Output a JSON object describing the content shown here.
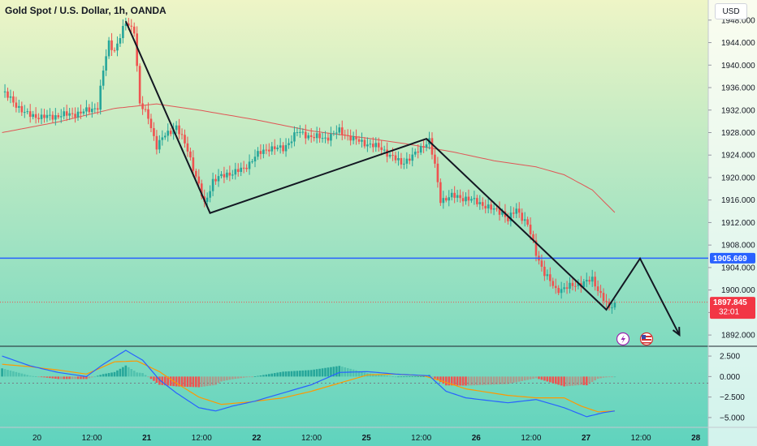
{
  "header": {
    "title": "Gold Spot / U.S. Dollar, 1h, OANDA",
    "currency_button": "USD"
  },
  "colors": {
    "bull": "#26a69a",
    "bear": "#ef5350",
    "ma_line": "#e05555",
    "hline": "#2962ff",
    "bg_top": "#eef5c6",
    "bg_bottom": "#5fd3be",
    "macd_line": "#2962ff",
    "signal_line": "#ff9800",
    "hist_pos": "#26a69a",
    "hist_neg": "#ef5350"
  },
  "chart_data": [
    {
      "type": "candlestick",
      "title": "Gold Spot / U.S. Dollar, 1h, OANDA",
      "ylim": [
        1890,
        1951
      ],
      "y_ticks": [
        1892,
        1896,
        1900,
        1904,
        1908,
        1912,
        1916,
        1920,
        1924,
        1928,
        1932,
        1936,
        1940,
        1944,
        1948
      ],
      "y_tick_labels": [
        "1892.000",
        "1896.000",
        "1900.000",
        "1904.000",
        "1908.000",
        "1912.000",
        "1916.000",
        "1920.000",
        "1924.000",
        "1928.000",
        "1932.000",
        "1936.000",
        "1940.000",
        "1944.000",
        "1948.000"
      ],
      "x_tick_labels": [
        "20",
        "12:00",
        "21",
        "12:00",
        "22",
        "12:00",
        "25",
        "12:00",
        "26",
        "12:00",
        "27",
        "12:00",
        "28"
      ],
      "horizontal_line": {
        "price": 1905.669,
        "label": "1905.669"
      },
      "last_price": {
        "price": 1897.845,
        "label": "1897.845",
        "countdown": "32:01"
      },
      "close_keypoints": [
        [
          0,
          1935.2
        ],
        [
          3,
          1934.0
        ],
        [
          8,
          1931.4
        ],
        [
          14,
          1930.7
        ],
        [
          20,
          1931.0
        ],
        [
          28,
          1931.5
        ],
        [
          34,
          1932.6
        ],
        [
          36,
          1939.0
        ],
        [
          38,
          1944.0
        ],
        [
          40,
          1942.6
        ],
        [
          44,
          1947.5
        ],
        [
          47,
          1946.3
        ],
        [
          49,
          1933.0
        ],
        [
          52,
          1930.8
        ],
        [
          55,
          1925.5
        ],
        [
          58,
          1927.6
        ],
        [
          62,
          1929.0
        ],
        [
          66,
          1925.0
        ],
        [
          70,
          1918.5
        ],
        [
          72,
          1915.2
        ],
        [
          75,
          1919.5
        ],
        [
          80,
          1920.6
        ],
        [
          86,
          1921.5
        ],
        [
          90,
          1923.8
        ],
        [
          95,
          1925.3
        ],
        [
          100,
          1925.1
        ],
        [
          105,
          1928.1
        ],
        [
          110,
          1927.3
        ],
        [
          115,
          1927.0
        ],
        [
          120,
          1928.3
        ],
        [
          125,
          1926.8
        ],
        [
          130,
          1926.0
        ],
        [
          135,
          1925.2
        ],
        [
          138,
          1923.9
        ],
        [
          142,
          1922.6
        ],
        [
          146,
          1923.7
        ],
        [
          150,
          1925.8
        ],
        [
          152,
          1926.6
        ],
        [
          154,
          1922.0
        ],
        [
          156,
          1916.0
        ],
        [
          160,
          1916.7
        ],
        [
          165,
          1916.3
        ],
        [
          170,
          1915.5
        ],
        [
          174,
          1914.4
        ],
        [
          178,
          1913.9
        ],
        [
          180,
          1912.4
        ],
        [
          183,
          1914.4
        ],
        [
          187,
          1911.6
        ],
        [
          190,
          1906.5
        ],
        [
          193,
          1903.0
        ],
        [
          197,
          1900.0
        ],
        [
          202,
          1900.6
        ],
        [
          206,
          1901.2
        ],
        [
          210,
          1901.8
        ],
        [
          214,
          1898.5
        ],
        [
          216,
          1896.5
        ],
        [
          218,
          1897.8
        ]
      ],
      "ma": {
        "points": [
          [
            0,
            1928.0
          ],
          [
            20,
            1929.9
          ],
          [
            40,
            1932.3
          ],
          [
            55,
            1933.1
          ],
          [
            70,
            1932.0
          ],
          [
            90,
            1930.3
          ],
          [
            110,
            1928.3
          ],
          [
            130,
            1927.0
          ],
          [
            145,
            1925.9
          ],
          [
            160,
            1924.6
          ],
          [
            175,
            1923.0
          ],
          [
            190,
            1921.9
          ],
          [
            200,
            1920.5
          ],
          [
            210,
            1917.8
          ],
          [
            218,
            1913.8
          ]
        ]
      },
      "drawing_path": [
        [
          44,
          1947.8
        ],
        [
          74,
          1913.7
        ],
        [
          151,
          1926.9
        ],
        [
          215,
          1896.5
        ],
        [
          227,
          1905.6
        ],
        [
          241,
          1892.0
        ]
      ]
    },
    {
      "type": "macd",
      "ylim": [
        -6,
        3.4
      ],
      "y_ticks": [
        2.5,
        0,
        -2.5,
        -5
      ],
      "y_tick_labels": [
        "2.500",
        "0.000",
        "−2.500",
        "−5.000"
      ],
      "macd": [
        [
          0,
          2.5
        ],
        [
          10,
          1.3
        ],
        [
          20,
          0.5
        ],
        [
          30,
          0.0
        ],
        [
          36,
          1.5
        ],
        [
          44,
          3.2
        ],
        [
          50,
          2.0
        ],
        [
          56,
          -0.4
        ],
        [
          62,
          -2.0
        ],
        [
          70,
          -3.8
        ],
        [
          76,
          -4.2
        ],
        [
          82,
          -3.6
        ],
        [
          90,
          -3.0
        ],
        [
          100,
          -2.0
        ],
        [
          110,
          -1.0
        ],
        [
          120,
          0.5
        ],
        [
          130,
          0.6
        ],
        [
          140,
          0.3
        ],
        [
          152,
          0.1
        ],
        [
          158,
          -1.8
        ],
        [
          165,
          -2.6
        ],
        [
          170,
          -2.8
        ],
        [
          180,
          -3.2
        ],
        [
          190,
          -2.8
        ],
        [
          200,
          -3.8
        ],
        [
          208,
          -4.9
        ],
        [
          214,
          -4.4
        ],
        [
          218,
          -4.2
        ]
      ],
      "signal": [
        [
          0,
          1.5
        ],
        [
          10,
          1.2
        ],
        [
          20,
          0.8
        ],
        [
          30,
          0.3
        ],
        [
          40,
          1.8
        ],
        [
          48,
          1.9
        ],
        [
          56,
          0.6
        ],
        [
          62,
          -0.8
        ],
        [
          70,
          -2.5
        ],
        [
          78,
          -3.4
        ],
        [
          88,
          -3.1
        ],
        [
          100,
          -2.6
        ],
        [
          110,
          -1.8
        ],
        [
          120,
          -0.8
        ],
        [
          130,
          0.2
        ],
        [
          140,
          0.3
        ],
        [
          150,
          0.1
        ],
        [
          156,
          -0.5
        ],
        [
          165,
          -1.5
        ],
        [
          180,
          -2.3
        ],
        [
          190,
          -2.6
        ],
        [
          200,
          -2.6
        ],
        [
          206,
          -3.6
        ],
        [
          212,
          -4.3
        ],
        [
          218,
          -4.2
        ]
      ]
    }
  ]
}
